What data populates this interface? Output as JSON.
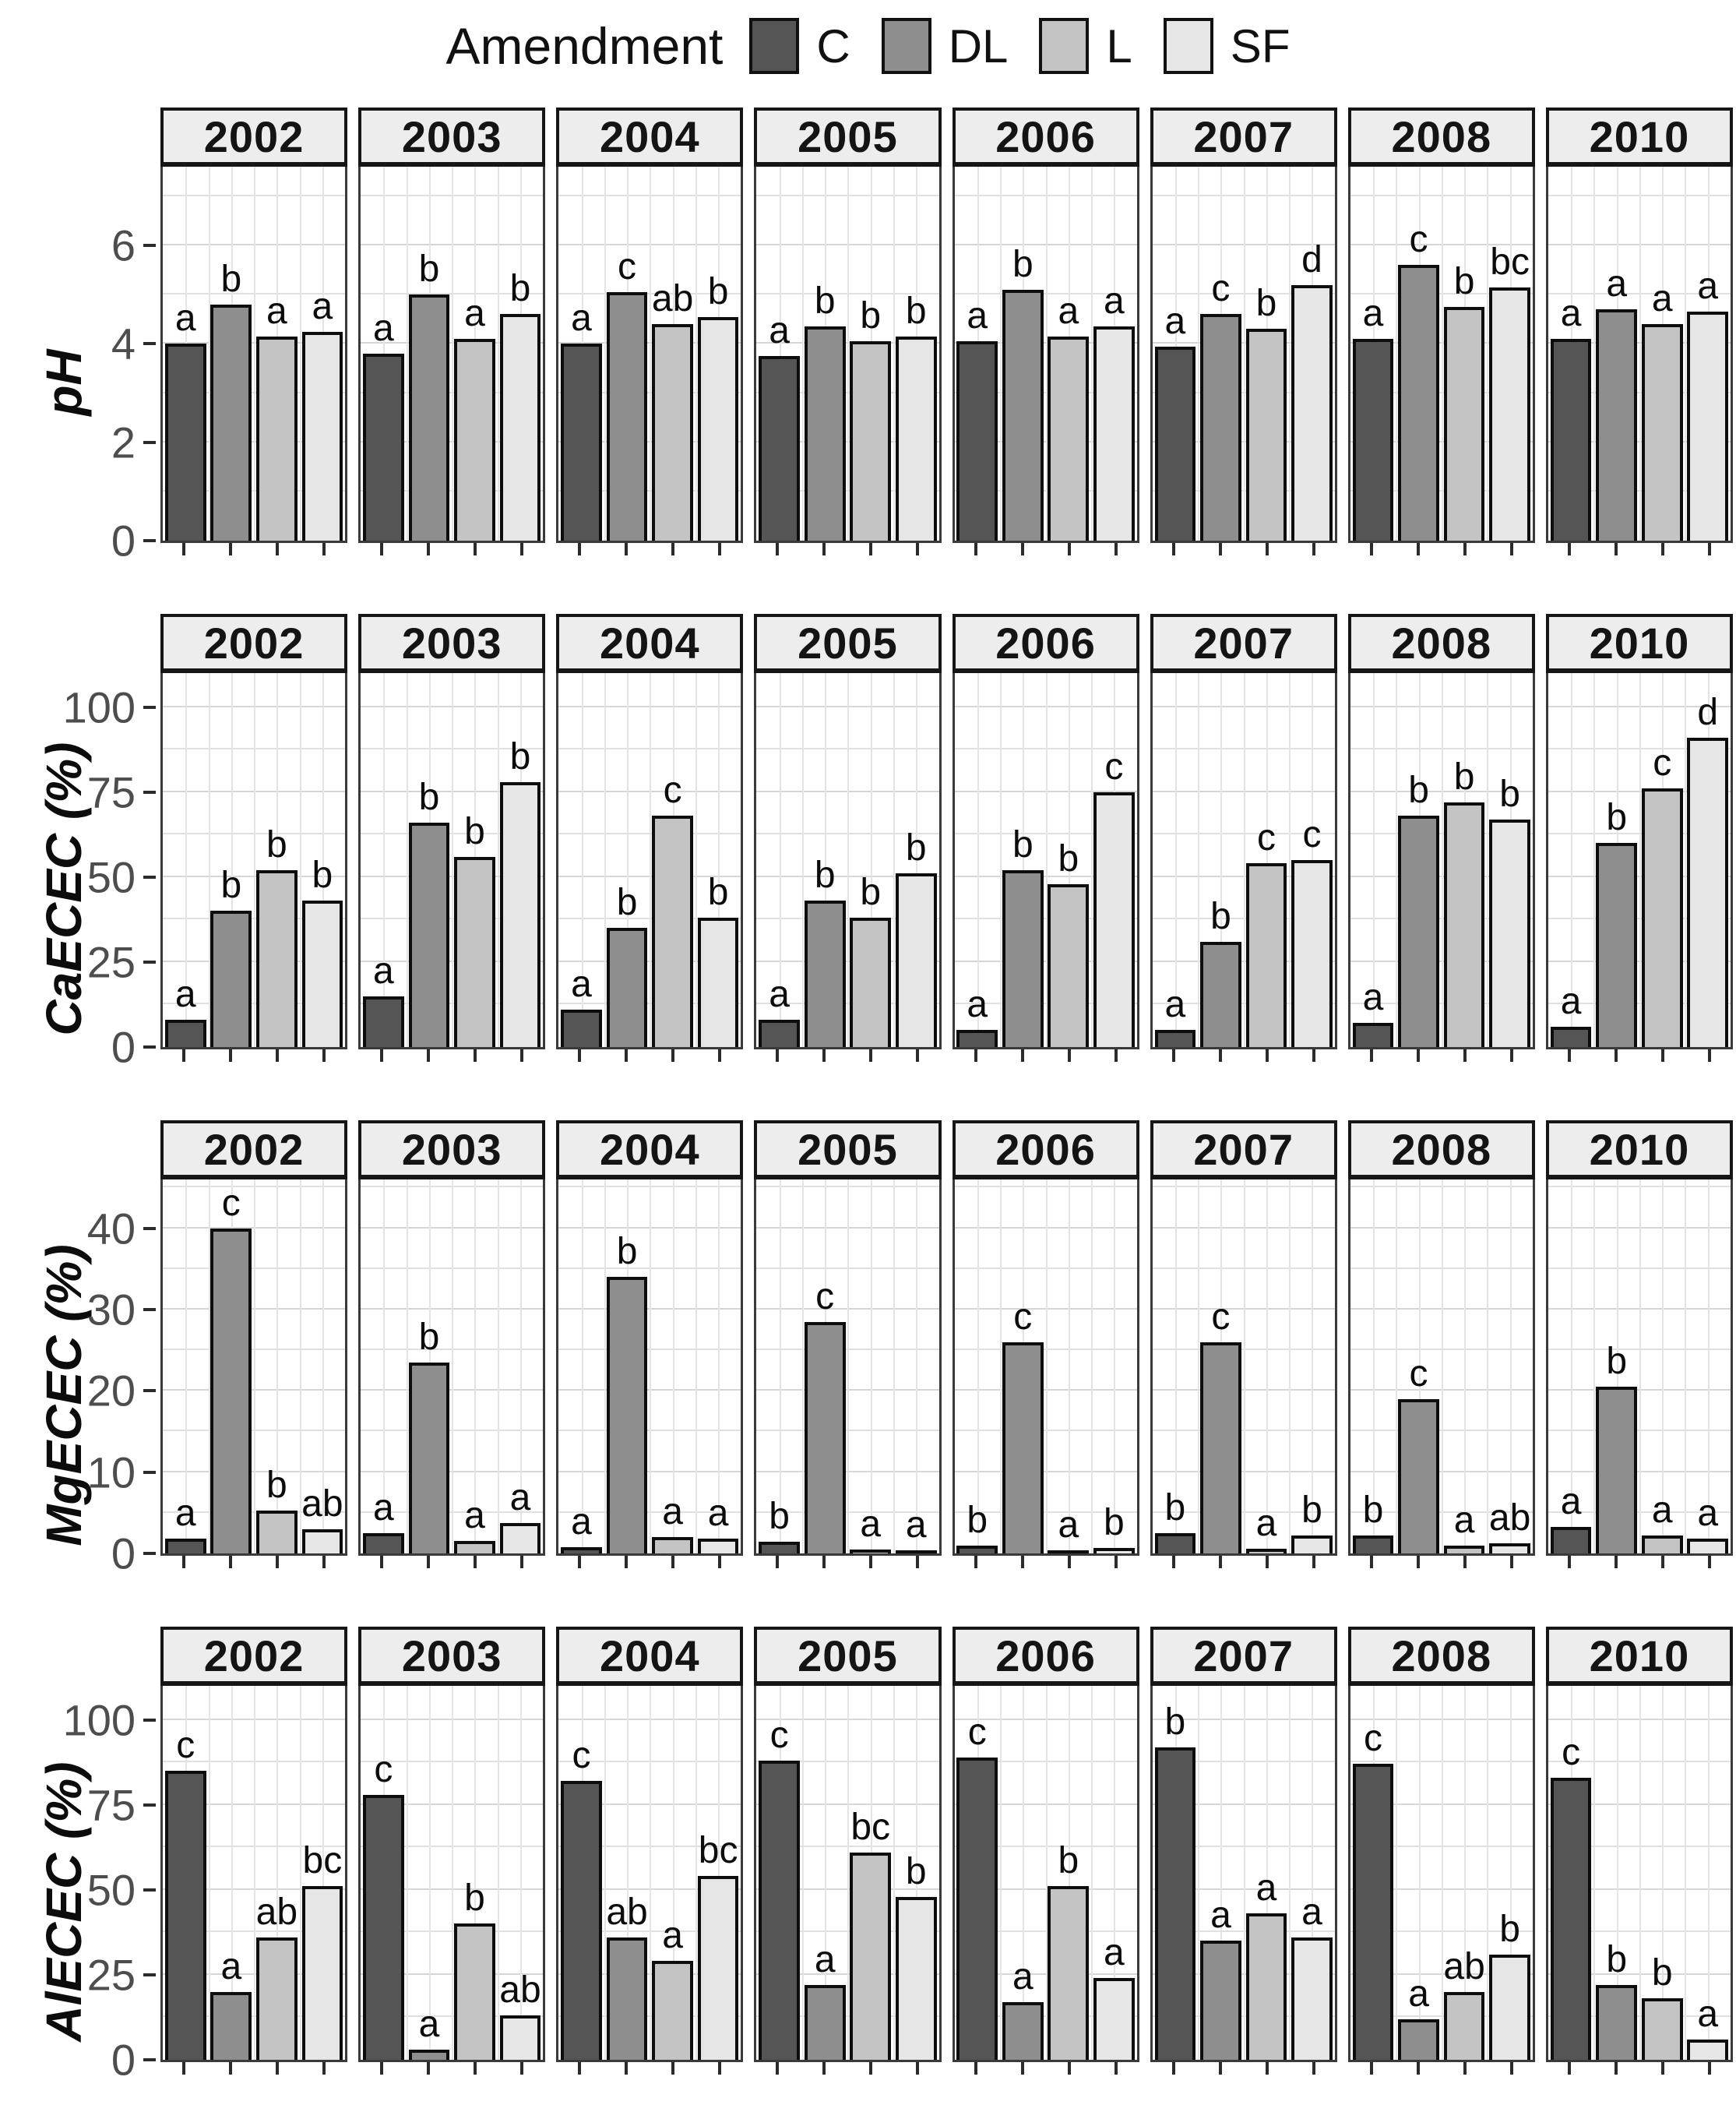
{
  "legend": {
    "title": "Amendment",
    "items": [
      {
        "label": "C",
        "color": "#555555"
      },
      {
        "label": "DL",
        "color": "#8e8e8e"
      },
      {
        "label": "L",
        "color": "#c4c4c4"
      },
      {
        "label": "SF",
        "color": "#e6e6e6"
      }
    ]
  },
  "style": {
    "strip_bg": "#ededed",
    "bar_border": "#0d0d0d",
    "grid_major": "#d6d6d6",
    "grid_minor": "#e4e4e4"
  },
  "chart_data": [
    {
      "type": "bar",
      "ylabel": "pH",
      "ylim": [
        0,
        7.6
      ],
      "yticks": [
        0,
        2,
        4,
        6
      ],
      "categories": [
        "C",
        "DL",
        "L",
        "SF"
      ],
      "legend_position": "top",
      "grid": true,
      "facets": [
        {
          "year": "2002",
          "values": [
            4.0,
            4.8,
            4.15,
            4.25
          ],
          "letters": [
            "a",
            "b",
            "a",
            "a"
          ]
        },
        {
          "year": "2003",
          "values": [
            3.8,
            5.0,
            4.1,
            4.6
          ],
          "letters": [
            "a",
            "b",
            "a",
            "b"
          ]
        },
        {
          "year": "2004",
          "values": [
            4.0,
            5.05,
            4.4,
            4.55
          ],
          "letters": [
            "a",
            "c",
            "ab",
            "b"
          ]
        },
        {
          "year": "2005",
          "values": [
            3.75,
            4.35,
            4.05,
            4.15
          ],
          "letters": [
            "a",
            "b",
            "b",
            "b"
          ]
        },
        {
          "year": "2006",
          "values": [
            4.05,
            5.1,
            4.15,
            4.35
          ],
          "letters": [
            "a",
            "b",
            "a",
            "a"
          ]
        },
        {
          "year": "2007",
          "values": [
            3.95,
            4.6,
            4.3,
            5.2
          ],
          "letters": [
            "a",
            "c",
            "b",
            "d"
          ]
        },
        {
          "year": "2008",
          "values": [
            4.1,
            5.6,
            4.75,
            5.15
          ],
          "letters": [
            "a",
            "c",
            "b",
            "bc"
          ]
        },
        {
          "year": "2010",
          "values": [
            4.1,
            4.7,
            4.4,
            4.65
          ],
          "letters": [
            "a",
            "a",
            "a",
            "a"
          ]
        }
      ]
    },
    {
      "type": "bar",
      "ylabel": "CaECEC (%)",
      "ylim": [
        0,
        110
      ],
      "yticks": [
        0,
        25,
        50,
        75,
        100
      ],
      "categories": [
        "C",
        "DL",
        "L",
        "SF"
      ],
      "legend_position": "top",
      "grid": true,
      "facets": [
        {
          "year": "2002",
          "values": [
            8,
            40,
            52,
            43
          ],
          "letters": [
            "a",
            "b",
            "b",
            "b"
          ]
        },
        {
          "year": "2003",
          "values": [
            15,
            66,
            56,
            78
          ],
          "letters": [
            "a",
            "b",
            "b",
            "b"
          ]
        },
        {
          "year": "2004",
          "values": [
            11,
            35,
            68,
            38
          ],
          "letters": [
            "a",
            "b",
            "c",
            "b"
          ]
        },
        {
          "year": "2005",
          "values": [
            8,
            43,
            38,
            51
          ],
          "letters": [
            "a",
            "b",
            "b",
            "b"
          ]
        },
        {
          "year": "2006",
          "values": [
            5,
            52,
            48,
            75
          ],
          "letters": [
            "a",
            "b",
            "b",
            "c"
          ]
        },
        {
          "year": "2007",
          "values": [
            5,
            31,
            54,
            55
          ],
          "letters": [
            "a",
            "b",
            "c",
            "c"
          ]
        },
        {
          "year": "2008",
          "values": [
            7,
            68,
            72,
            67
          ],
          "letters": [
            "a",
            "b",
            "b",
            "b"
          ]
        },
        {
          "year": "2010",
          "values": [
            6,
            60,
            76,
            91
          ],
          "letters": [
            "a",
            "b",
            "c",
            "d"
          ]
        }
      ]
    },
    {
      "type": "bar",
      "ylabel": "MgECEC (%)",
      "ylim": [
        0,
        46
      ],
      "yticks": [
        0,
        10,
        20,
        30,
        40
      ],
      "categories": [
        "C",
        "DL",
        "L",
        "SF"
      ],
      "legend_position": "top",
      "grid": true,
      "facets": [
        {
          "year": "2002",
          "values": [
            1.8,
            40,
            5.3,
            3.0
          ],
          "letters": [
            "a",
            "c",
            "b",
            "ab"
          ]
        },
        {
          "year": "2003",
          "values": [
            2.5,
            23.5,
            1.5,
            3.7
          ],
          "letters": [
            "a",
            "b",
            "a",
            "a"
          ]
        },
        {
          "year": "2004",
          "values": [
            0.8,
            34,
            2.0,
            1.8
          ],
          "letters": [
            "a",
            "b",
            "a",
            "a"
          ]
        },
        {
          "year": "2005",
          "values": [
            1.4,
            28.5,
            0.5,
            0.4
          ],
          "letters": [
            "b",
            "c",
            "a",
            "a"
          ]
        },
        {
          "year": "2006",
          "values": [
            1.0,
            26,
            0.4,
            0.7
          ],
          "letters": [
            "b",
            "c",
            "a",
            "b"
          ]
        },
        {
          "year": "2007",
          "values": [
            2.5,
            26,
            0.6,
            2.2
          ],
          "letters": [
            "b",
            "c",
            "a",
            "b"
          ]
        },
        {
          "year": "2008",
          "values": [
            2.2,
            19,
            1.0,
            1.2
          ],
          "letters": [
            "b",
            "c",
            "a",
            "ab"
          ]
        },
        {
          "year": "2010",
          "values": [
            3.3,
            20.5,
            2.2,
            1.8
          ],
          "letters": [
            "a",
            "b",
            "a",
            "a"
          ]
        }
      ]
    },
    {
      "type": "bar",
      "ylabel": "AlECEC (%)",
      "ylim": [
        0,
        110
      ],
      "yticks": [
        0,
        25,
        50,
        75,
        100
      ],
      "categories": [
        "C",
        "DL",
        "L",
        "SF"
      ],
      "legend_position": "top",
      "grid": true,
      "facets": [
        {
          "year": "2002",
          "values": [
            85,
            20,
            36,
            51
          ],
          "letters": [
            "c",
            "a",
            "ab",
            "bc"
          ]
        },
        {
          "year": "2003",
          "values": [
            78,
            3,
            40,
            13
          ],
          "letters": [
            "c",
            "a",
            "b",
            "ab"
          ]
        },
        {
          "year": "2004",
          "values": [
            82,
            36,
            29,
            54
          ],
          "letters": [
            "c",
            "ab",
            "a",
            "bc"
          ]
        },
        {
          "year": "2005",
          "values": [
            88,
            22,
            61,
            48
          ],
          "letters": [
            "c",
            "a",
            "bc",
            "b"
          ]
        },
        {
          "year": "2006",
          "values": [
            89,
            17,
            51,
            24
          ],
          "letters": [
            "c",
            "a",
            "b",
            "a"
          ]
        },
        {
          "year": "2007",
          "values": [
            92,
            35,
            43,
            36
          ],
          "letters": [
            "b",
            "a",
            "a",
            "a"
          ]
        },
        {
          "year": "2008",
          "values": [
            87,
            12,
            20,
            31
          ],
          "letters": [
            "c",
            "a",
            "ab",
            "b"
          ]
        },
        {
          "year": "2010",
          "values": [
            83,
            22,
            18,
            6
          ],
          "letters": [
            "c",
            "b",
            "b",
            "a"
          ]
        }
      ]
    }
  ]
}
